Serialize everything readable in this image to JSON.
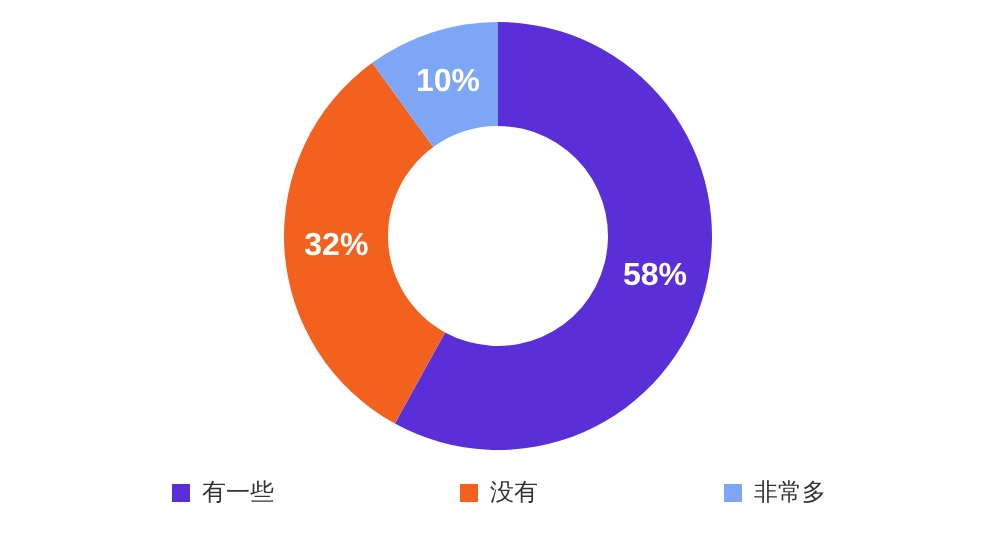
{
  "chart_data": {
    "type": "donut",
    "categories": [
      "有一些",
      "没有",
      "非常多"
    ],
    "values": [
      58,
      32,
      10
    ],
    "colors": [
      "#5b2fd8",
      "#f2621e",
      "#7ea6f6"
    ],
    "legend": "bottom",
    "value_labels": [
      "58%",
      "32%",
      "10%"
    ]
  }
}
